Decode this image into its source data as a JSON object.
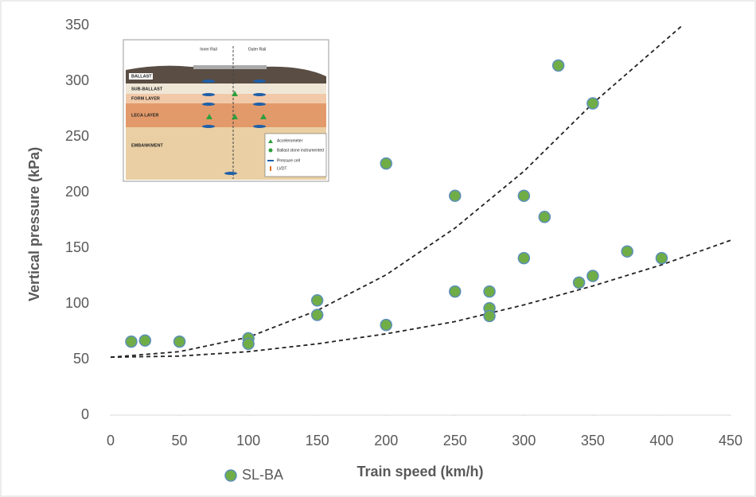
{
  "chart_data": {
    "type": "scatter",
    "x_label": "Train speed (km/h)",
    "y_label": "Vertical pressure (kPa)",
    "xlim": [
      0,
      450
    ],
    "xticks": [
      0,
      50,
      100,
      150,
      200,
      250,
      300,
      350,
      400,
      450
    ],
    "ylim": [
      0,
      350
    ],
    "yticks": [
      0,
      50,
      100,
      150,
      200,
      250,
      300,
      350
    ],
    "grid": false,
    "legend": "bottom-left",
    "series": [
      {
        "name": "SL-BA",
        "color": "#70ad47",
        "edgecolor": "#5b8fb9",
        "x": [
          15,
          25,
          50,
          100,
          100,
          150,
          150,
          200,
          200,
          250,
          250,
          275,
          275,
          275,
          300,
          300,
          315,
          325,
          340,
          350,
          350,
          375,
          400
        ],
        "values": [
          66,
          67,
          66,
          69,
          64,
          103,
          90,
          226,
          81,
          197,
          111,
          111,
          96,
          89,
          197,
          141,
          178,
          314,
          119,
          280,
          125,
          147,
          141
        ]
      }
    ],
    "trend_lines": [
      {
        "color": "#222222",
        "dashed": true,
        "x": [
          0,
          50,
          100,
          150,
          200,
          250,
          300,
          350,
          415
        ],
        "values": [
          52,
          57,
          70,
          94,
          126,
          168,
          219,
          280,
          350
        ]
      },
      {
        "color": "#222222",
        "dashed": true,
        "x": [
          0,
          50,
          100,
          150,
          200,
          250,
          300,
          350,
          400,
          450
        ],
        "values": [
          52,
          53,
          57,
          64,
          73,
          84,
          99,
          116,
          135,
          157
        ]
      }
    ],
    "inset": {
      "rails": [
        "Inner Rail",
        "Outer Rail"
      ],
      "layers": [
        "BALLAST",
        "SUB-BALLAST",
        "FORM LAYER",
        "LECA LAYER",
        "EMBANKMENT"
      ],
      "legend": [
        "Accelerometer",
        "Ballast stone instrumented",
        "Pressure cell",
        "LVDT"
      ]
    }
  }
}
